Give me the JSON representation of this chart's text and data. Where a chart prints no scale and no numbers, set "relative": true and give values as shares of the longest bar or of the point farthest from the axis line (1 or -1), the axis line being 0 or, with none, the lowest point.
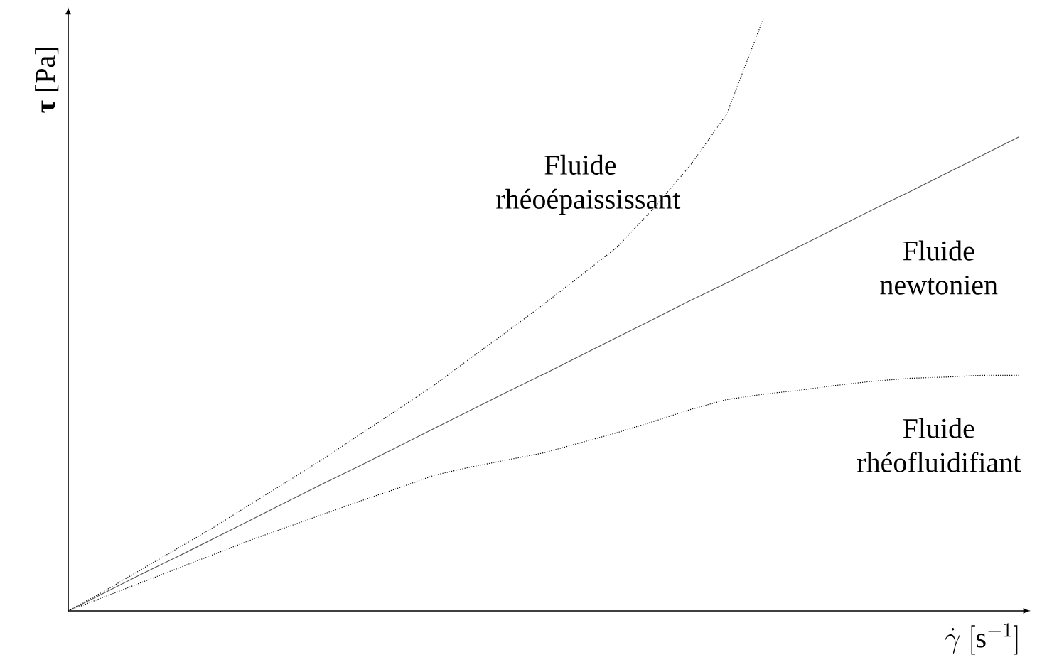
{
  "chart_data": {
    "type": "line",
    "relative": true,
    "xlabel": "\\dot{\\gamma}\\ [\\mathrm{s}^{-1}]",
    "ylabel": "**τ** [Pa]",
    "categories": [
      null,
      null,
      null,
      null,
      null,
      null,
      null,
      null,
      null,
      null,
      null,
      null,
      null,
      null,
      null,
      null,
      null,
      null,
      null,
      null,
      null,
      null,
      null,
      null,
      null,
      null,
      null
    ],
    "series": [
      {
        "name": "Fluide rhéoépaississant",
        "color": "#000000",
        "line_style": "dotted",
        "values": [
          0,
          0.034,
          0.07,
          0.106,
          0.142,
          0.181,
          0.219,
          0.258,
          0.299,
          0.34,
          0.381,
          0.427,
          0.472,
          0.518,
          0.566,
          0.614,
          0.68,
          0.752,
          0.839,
          1,
          null,
          null,
          null,
          null,
          null,
          null,
          null
        ]
      },
      {
        "name": "Fluide newtonien",
        "color": "#555555",
        "line_style": "solid",
        "values": [
          0,
          0.031,
          0.062,
          0.092,
          0.123,
          0.154,
          0.185,
          0.216,
          0.246,
          0.277,
          0.308,
          0.339,
          0.37,
          0.4,
          0.431,
          0.462,
          0.493,
          0.524,
          0.554,
          0.585,
          0.616,
          0.647,
          0.678,
          0.708,
          0.739,
          0.77,
          0.801
        ]
      },
      {
        "name": "Fluide rhéofluidifiant",
        "color": "#000000",
        "line_style": "dotted",
        "values": [
          0,
          0.024,
          0.048,
          0.072,
          0.096,
          0.12,
          0.142,
          0.164,
          0.186,
          0.207,
          0.229,
          0.243,
          0.255,
          0.267,
          0.284,
          0.301,
          0.32,
          0.34,
          0.357,
          0.366,
          0.373,
          0.381,
          0.388,
          0.393,
          0.395,
          0.398,
          0.398
        ]
      }
    ]
  }
}
